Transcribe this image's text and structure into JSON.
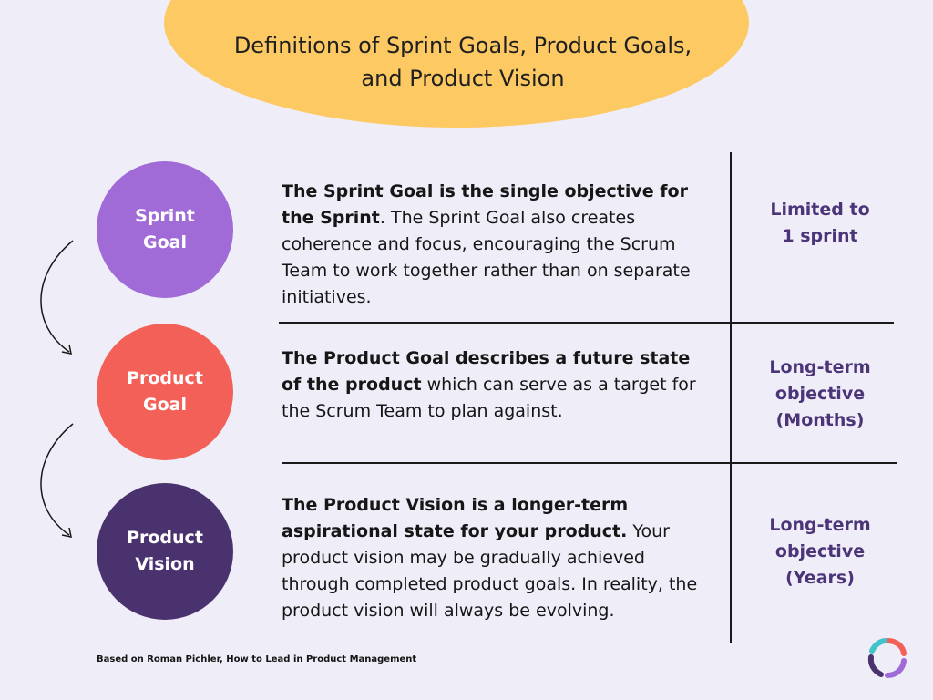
{
  "title": "Definitions of Sprint Goals, Product Goals, and Product Vision",
  "rows": [
    {
      "circle_label": "Sprint\nGoal",
      "circle_color": "#a06ad7",
      "bold_text": "The Sprint Goal is the single objective for the Sprint",
      "regular_text": ". The Sprint Goal also creates coherence and focus, encouraging the Scrum Team to work together rather than on separate initiatives.",
      "duration": "Limited to\n1 sprint"
    },
    {
      "circle_label": "Product\nGoal",
      "circle_color": "#f36057",
      "bold_text": "The Product Goal describes a future state of the product",
      "regular_text": " which can serve as a target for the Scrum Team to plan against.",
      "duration": "Long-term\nobjective\n(Months)"
    },
    {
      "circle_label": "Product\nVision",
      "circle_color": "#4a326f",
      "bold_text": "The Product Vision is a longer-term aspirational state for your product.",
      "regular_text": " Your product vision may be gradually achieved through completed product goals. In reality, the product vision will always be evolving.",
      "duration": "Long-term\nobjective\n(Years)"
    }
  ],
  "footer": "Based on Roman Pichler, How to Lead in Product Management",
  "colors": {
    "background": "#efedf7",
    "title_blob": "#fdc963",
    "duration_text": "#4b3478"
  },
  "icons": {
    "arrow": "curved-down-arrow-icon",
    "logo": "brand-logo-icon"
  }
}
